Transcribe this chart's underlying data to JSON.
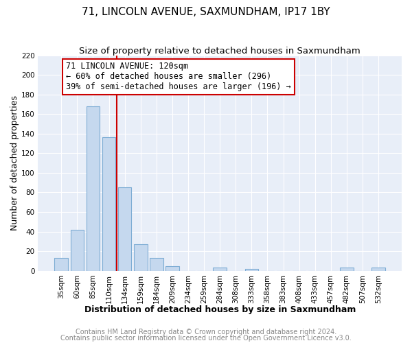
{
  "title": "71, LINCOLN AVENUE, SAXMUNDHAM, IP17 1BY",
  "subtitle": "Size of property relative to detached houses in Saxmundham",
  "xlabel": "Distribution of detached houses by size in Saxmundham",
  "ylabel": "Number of detached properties",
  "bar_labels": [
    "35sqm",
    "60sqm",
    "85sqm",
    "110sqm",
    "134sqm",
    "159sqm",
    "184sqm",
    "209sqm",
    "234sqm",
    "259sqm",
    "284sqm",
    "308sqm",
    "333sqm",
    "358sqm",
    "383sqm",
    "408sqm",
    "433sqm",
    "457sqm",
    "482sqm",
    "507sqm",
    "532sqm"
  ],
  "bar_heights": [
    13,
    42,
    168,
    136,
    85,
    27,
    13,
    5,
    0,
    0,
    3,
    0,
    2,
    0,
    0,
    0,
    0,
    0,
    3,
    0,
    3
  ],
  "bar_color": "#c5d8ee",
  "bar_edge_color": "#7eadd4",
  "vline_color": "#cc0000",
  "annotation_line1": "71 LINCOLN AVENUE: 120sqm",
  "annotation_line2": "← 60% of detached houses are smaller (296)",
  "annotation_line3": "39% of semi-detached houses are larger (196) →",
  "annotation_box_color": "#ffffff",
  "annotation_box_edge": "#cc0000",
  "ylim": [
    0,
    220
  ],
  "yticks": [
    0,
    20,
    40,
    60,
    80,
    100,
    120,
    140,
    160,
    180,
    200,
    220
  ],
  "footer1": "Contains HM Land Registry data © Crown copyright and database right 2024.",
  "footer2": "Contains public sector information licensed under the Open Government Licence v3.0.",
  "bg_color": "#ffffff",
  "plot_bg_color": "#e8eef8",
  "title_fontsize": 11,
  "subtitle_fontsize": 9.5,
  "axis_label_fontsize": 9,
  "tick_fontsize": 7.5,
  "annotation_fontsize": 8.5,
  "footer_fontsize": 7
}
